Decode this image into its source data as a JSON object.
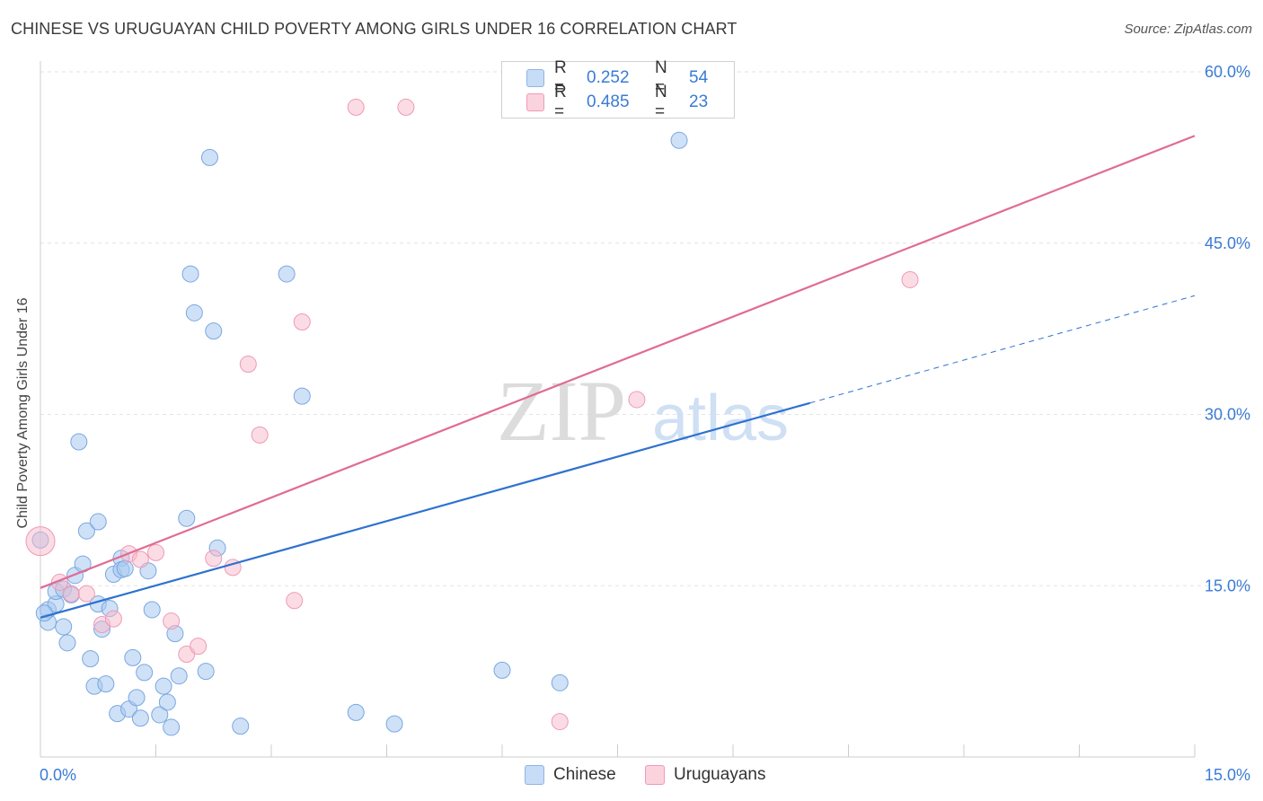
{
  "title": "CHINESE VS URUGUAYAN CHILD POVERTY AMONG GIRLS UNDER 16 CORRELATION CHART",
  "source": "Source: ZipAtlas.com",
  "watermark": {
    "zip": "ZIP",
    "atlas": "atlas"
  },
  "legend": {
    "rows": [
      {
        "r_label": "R =",
        "r_value": "0.252",
        "n_label": "N =",
        "n_value": "54",
        "color": "#a8c8f0"
      },
      {
        "r_label": "R =",
        "r_value": "0.485",
        "n_label": "N =",
        "n_value": "23",
        "color": "#f7b9cc"
      }
    ]
  },
  "bottom_legend": [
    {
      "label": "Chinese",
      "color": "#a8c8f0"
    },
    {
      "label": "Uruguayans",
      "color": "#f7b9cc"
    }
  ],
  "colors": {
    "blue_line": "#2e72cf",
    "pink_line": "#e06b93",
    "blue_fill": "#a8c8f0",
    "pink_fill": "#f7b9cc",
    "tick_text": "#3a7bd5"
  },
  "chart_data": {
    "type": "scatter",
    "title": "CHINESE VS URUGUAYAN CHILD POVERTY AMONG GIRLS UNDER 16 CORRELATION CHART",
    "xlabel": "",
    "ylabel": "Child Poverty Among Girls Under 16",
    "xlim": [
      0,
      15
    ],
    "ylim": [
      0,
      60
    ],
    "x_tick_labels": [
      "0.0%",
      "15.0%"
    ],
    "y_ticks": [
      {
        "value": 15,
        "label": "15.0%"
      },
      {
        "value": 30,
        "label": "30.0%"
      },
      {
        "value": 45,
        "label": "45.0%"
      },
      {
        "value": 60,
        "label": "60.0%"
      }
    ],
    "grid": true,
    "legend_position": "top-center",
    "series": [
      {
        "name": "Chinese",
        "color": "#a8c8f0",
        "points": [
          [
            0.0,
            19.0
          ],
          [
            0.1,
            11.8
          ],
          [
            0.1,
            12.9
          ],
          [
            0.2,
            13.4
          ],
          [
            0.2,
            14.5
          ],
          [
            0.3,
            14.7
          ],
          [
            0.3,
            11.4
          ],
          [
            0.35,
            10.0
          ],
          [
            0.4,
            14.2
          ],
          [
            0.45,
            15.9
          ],
          [
            0.5,
            27.6
          ],
          [
            0.55,
            16.9
          ],
          [
            0.6,
            19.8
          ],
          [
            0.65,
            8.6
          ],
          [
            0.7,
            6.2
          ],
          [
            0.75,
            20.6
          ],
          [
            0.75,
            13.4
          ],
          [
            0.8,
            11.2
          ],
          [
            0.85,
            6.4
          ],
          [
            0.9,
            13.0
          ],
          [
            0.95,
            16.0
          ],
          [
            1.0,
            3.8
          ],
          [
            1.05,
            17.4
          ],
          [
            1.05,
            16.4
          ],
          [
            1.1,
            16.5
          ],
          [
            1.15,
            4.2
          ],
          [
            1.2,
            8.7
          ],
          [
            1.25,
            5.2
          ],
          [
            1.3,
            3.4
          ],
          [
            1.35,
            7.4
          ],
          [
            1.4,
            16.3
          ],
          [
            1.45,
            12.9
          ],
          [
            1.55,
            3.7
          ],
          [
            1.6,
            6.2
          ],
          [
            1.65,
            4.8
          ],
          [
            1.7,
            2.6
          ],
          [
            1.75,
            10.8
          ],
          [
            1.8,
            7.1
          ],
          [
            1.9,
            20.9
          ],
          [
            1.95,
            42.3
          ],
          [
            2.0,
            38.9
          ],
          [
            2.15,
            7.5
          ],
          [
            2.2,
            52.5
          ],
          [
            2.25,
            37.3
          ],
          [
            2.3,
            18.3
          ],
          [
            2.6,
            2.7
          ],
          [
            3.2,
            42.3
          ],
          [
            3.4,
            31.6
          ],
          [
            4.1,
            3.9
          ],
          [
            4.6,
            2.9
          ],
          [
            6.0,
            7.6
          ],
          [
            6.75,
            6.5
          ],
          [
            8.3,
            54.0
          ],
          [
            0.05,
            12.6
          ]
        ]
      },
      {
        "name": "Uruguayans",
        "color": "#f7b9cc",
        "points": [
          [
            0.0,
            18.9
          ],
          [
            0.25,
            15.3
          ],
          [
            0.4,
            14.3
          ],
          [
            0.6,
            14.3
          ],
          [
            0.8,
            11.6
          ],
          [
            0.95,
            12.1
          ],
          [
            1.15,
            17.8
          ],
          [
            1.3,
            17.3
          ],
          [
            1.5,
            17.9
          ],
          [
            1.7,
            11.9
          ],
          [
            1.9,
            9.0
          ],
          [
            2.05,
            9.7
          ],
          [
            2.25,
            17.4
          ],
          [
            2.5,
            16.6
          ],
          [
            2.7,
            34.4
          ],
          [
            2.85,
            28.2
          ],
          [
            3.3,
            13.7
          ],
          [
            3.4,
            38.1
          ],
          [
            4.1,
            56.9
          ],
          [
            4.75,
            56.9
          ],
          [
            6.75,
            3.1
          ],
          [
            7.75,
            31.3
          ],
          [
            11.3,
            41.8
          ]
        ]
      }
    ],
    "trendlines": [
      {
        "series": "Chinese",
        "solid_x": [
          0,
          10
        ],
        "dashed_x": [
          10,
          15
        ],
        "y_at_x0": 12.2,
        "y_at_x15": 40.4,
        "style": "solid-then-dashed"
      },
      {
        "series": "Uruguayans",
        "x": [
          0,
          15
        ],
        "y_at_x0": 14.8,
        "y_at_x15": 54.4,
        "style": "solid"
      }
    ]
  }
}
